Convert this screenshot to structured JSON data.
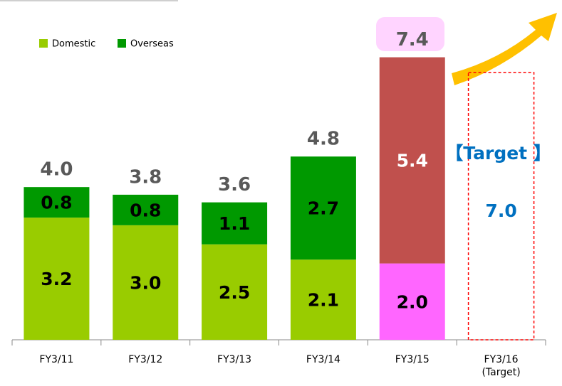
{
  "chart_data": {
    "type": "bar",
    "stacked": true,
    "categories": [
      "FY3/11",
      "FY3/12",
      "FY3/13",
      "FY3/14",
      "FY3/15",
      "FY3/16"
    ],
    "category_note": {
      "index": 5,
      "text": "(Target)"
    },
    "series": [
      {
        "name": "Domestic",
        "color": "#99cc00",
        "colors": [
          "#99cc00",
          "#99cc00",
          "#99cc00",
          "#99cc00",
          "#ff66ff",
          null
        ],
        "label_colors": [
          "#000000",
          "#000000",
          "#000000",
          "#000000",
          "#000000",
          null
        ],
        "values": [
          3.2,
          3.0,
          2.5,
          2.1,
          2.0,
          null
        ],
        "value_labels": [
          "3.2",
          "3.0",
          "2.5",
          "2.1",
          "2.0",
          null
        ]
      },
      {
        "name": "Overseas",
        "color": "#009900",
        "colors": [
          "#009900",
          "#009900",
          "#009900",
          "#009900",
          "#c0504d",
          null
        ],
        "label_colors": [
          "#000000",
          "#000000",
          "#000000",
          "#000000",
          "#ffffff",
          null
        ],
        "values": [
          0.8,
          0.8,
          1.1,
          2.7,
          5.4,
          null
        ],
        "value_labels": [
          "0.8",
          "0.8",
          "1.1",
          "2.7",
          "5.4",
          null
        ]
      }
    ],
    "totals": [
      4.0,
      3.8,
      3.6,
      4.8,
      7.4,
      null
    ],
    "total_labels": [
      "4.0",
      "3.8",
      "3.6",
      "4.8",
      "7.4",
      null
    ],
    "target": {
      "index": 5,
      "label": "【Target 】",
      "value": 7.0,
      "value_label": "7.0",
      "color": "#0070c0",
      "box_color": "#ff0000"
    },
    "ylim": [
      0,
      8.9
    ],
    "legend": "top-left"
  }
}
